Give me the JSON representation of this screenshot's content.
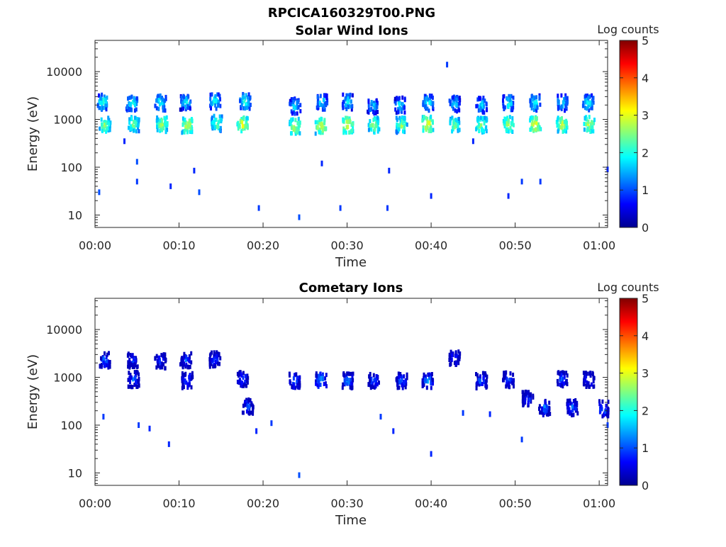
{
  "figure": {
    "title": "RPCICA160329T00.PNG"
  },
  "chart_data": [
    {
      "type": "heatmap",
      "title": "Solar Wind Ions",
      "xlabel": "Time",
      "ylabel": "Energy (eV)",
      "x_scale": "time",
      "y_scale": "log",
      "xlim": [
        "00:00",
        "01:01"
      ],
      "ylim": [
        5.5,
        45000
      ],
      "x_ticks": [
        "00:00",
        "00:10",
        "00:20",
        "00:30",
        "00:40",
        "00:50",
        "01:00"
      ],
      "y_ticks": [
        "10",
        "100",
        "1000",
        "10000"
      ],
      "colorbar": {
        "label": "Log counts",
        "range": [
          0,
          5
        ],
        "ticks": [
          "0",
          "1",
          "2",
          "3",
          "4",
          "5"
        ],
        "colormap": "jet"
      },
      "clusters": [
        {
          "t": 1.2,
          "e": 750,
          "v": 2.7
        },
        {
          "t": 1.0,
          "e": 2300,
          "v": 2.2
        },
        {
          "t": 4.6,
          "e": 800,
          "v": 2.6
        },
        {
          "t": 4.4,
          "e": 2200,
          "v": 2.2
        },
        {
          "t": 8.0,
          "e": 780,
          "v": 2.9
        },
        {
          "t": 7.8,
          "e": 2200,
          "v": 2.1
        },
        {
          "t": 11.0,
          "e": 760,
          "v": 3.0
        },
        {
          "t": 10.8,
          "e": 2300,
          "v": 2.0
        },
        {
          "t": 14.5,
          "e": 820,
          "v": 2.6
        },
        {
          "t": 14.3,
          "e": 2400,
          "v": 2.1
        },
        {
          "t": 17.6,
          "e": 780,
          "v": 3.1
        },
        {
          "t": 17.9,
          "e": 2400,
          "v": 2.2
        },
        {
          "t": 23.8,
          "e": 720,
          "v": 3.0
        },
        {
          "t": 23.8,
          "e": 1900,
          "v": 1.9
        },
        {
          "t": 26.9,
          "e": 720,
          "v": 3.1
        },
        {
          "t": 27.0,
          "e": 2300,
          "v": 2.0
        },
        {
          "t": 30.1,
          "e": 760,
          "v": 3.2
        },
        {
          "t": 30.1,
          "e": 2300,
          "v": 2.0
        },
        {
          "t": 33.2,
          "e": 760,
          "v": 2.8
        },
        {
          "t": 33.1,
          "e": 1900,
          "v": 1.8
        },
        {
          "t": 36.5,
          "e": 760,
          "v": 2.7
        },
        {
          "t": 36.3,
          "e": 2000,
          "v": 1.9
        },
        {
          "t": 39.6,
          "e": 800,
          "v": 3.2
        },
        {
          "t": 39.6,
          "e": 2200,
          "v": 2.0
        },
        {
          "t": 42.8,
          "e": 760,
          "v": 2.7
        },
        {
          "t": 42.8,
          "e": 2100,
          "v": 1.9
        },
        {
          "t": 46.0,
          "e": 760,
          "v": 2.8
        },
        {
          "t": 46.0,
          "e": 2000,
          "v": 1.9
        },
        {
          "t": 49.2,
          "e": 780,
          "v": 2.9
        },
        {
          "t": 49.2,
          "e": 2200,
          "v": 2.1
        },
        {
          "t": 52.4,
          "e": 780,
          "v": 3.2
        },
        {
          "t": 52.4,
          "e": 2200,
          "v": 2.1
        },
        {
          "t": 55.6,
          "e": 780,
          "v": 3.0
        },
        {
          "t": 55.6,
          "e": 2200,
          "v": 2.0
        },
        {
          "t": 58.8,
          "e": 780,
          "v": 2.9
        },
        {
          "t": 58.7,
          "e": 2200,
          "v": 2.1
        }
      ],
      "scatter": [
        {
          "t": 3.5,
          "e": 350,
          "v": 0.8
        },
        {
          "t": 5.0,
          "e": 130,
          "v": 1.0
        },
        {
          "t": 5.0,
          "e": 50,
          "v": 0.9
        },
        {
          "t": 9.0,
          "e": 40,
          "v": 0.8
        },
        {
          "t": 11.8,
          "e": 85,
          "v": 0.8
        },
        {
          "t": 12.4,
          "e": 30,
          "v": 1.0
        },
        {
          "t": 19.5,
          "e": 14,
          "v": 0.9
        },
        {
          "t": 24.3,
          "e": 9,
          "v": 1.0
        },
        {
          "t": 29.2,
          "e": 14,
          "v": 0.9
        },
        {
          "t": 34.8,
          "e": 14,
          "v": 0.9
        },
        {
          "t": 35.0,
          "e": 85,
          "v": 0.8
        },
        {
          "t": 40.0,
          "e": 25,
          "v": 0.8
        },
        {
          "t": 41.9,
          "e": 14000,
          "v": 0.9
        },
        {
          "t": 49.2,
          "e": 25,
          "v": 0.8
        },
        {
          "t": 50.8,
          "e": 50,
          "v": 0.9
        },
        {
          "t": 53.0,
          "e": 50,
          "v": 0.9
        },
        {
          "t": 61.0,
          "e": 90,
          "v": 0.8
        },
        {
          "t": 0.5,
          "e": 30,
          "v": 1.0
        },
        {
          "t": 27.0,
          "e": 120,
          "v": 0.8
        },
        {
          "t": 45.0,
          "e": 350,
          "v": 0.8
        }
      ]
    },
    {
      "type": "heatmap",
      "title": "Cometary Ions",
      "xlabel": "Time",
      "ylabel": "Energy (eV)",
      "x_scale": "time",
      "y_scale": "log",
      "xlim": [
        "00:00",
        "01:01"
      ],
      "ylim": [
        5.5,
        45000
      ],
      "x_ticks": [
        "00:00",
        "00:10",
        "00:20",
        "00:30",
        "00:40",
        "00:50",
        "01:00"
      ],
      "y_ticks": [
        "10",
        "100",
        "1000",
        "10000"
      ],
      "colorbar": {
        "label": "Log counts",
        "range": [
          0,
          5
        ],
        "ticks": [
          "0",
          "1",
          "2",
          "3",
          "4",
          "5"
        ],
        "colormap": "jet"
      },
      "clusters": [
        {
          "t": 1.2,
          "e": 2300,
          "v": 1.3
        },
        {
          "t": 4.5,
          "e": 2200,
          "v": 1.1
        },
        {
          "t": 4.6,
          "e": 900,
          "v": 1.2
        },
        {
          "t": 7.8,
          "e": 2200,
          "v": 1.1
        },
        {
          "t": 10.8,
          "e": 2300,
          "v": 1.1
        },
        {
          "t": 11.0,
          "e": 850,
          "v": 1.3
        },
        {
          "t": 14.3,
          "e": 2400,
          "v": 1.2
        },
        {
          "t": 17.6,
          "e": 900,
          "v": 1.3
        },
        {
          "t": 18.2,
          "e": 250,
          "v": 1.2
        },
        {
          "t": 23.8,
          "e": 850,
          "v": 1.4
        },
        {
          "t": 26.9,
          "e": 850,
          "v": 1.6
        },
        {
          "t": 30.1,
          "e": 850,
          "v": 1.4
        },
        {
          "t": 33.2,
          "e": 850,
          "v": 1.2
        },
        {
          "t": 36.5,
          "e": 850,
          "v": 1.3
        },
        {
          "t": 39.6,
          "e": 850,
          "v": 1.5
        },
        {
          "t": 42.8,
          "e": 2500,
          "v": 1.1
        },
        {
          "t": 46.0,
          "e": 850,
          "v": 1.3
        },
        {
          "t": 49.2,
          "e": 900,
          "v": 1.2
        },
        {
          "t": 51.5,
          "e": 350,
          "v": 1.1
        },
        {
          "t": 53.5,
          "e": 230,
          "v": 1.3
        },
        {
          "t": 55.6,
          "e": 900,
          "v": 1.2
        },
        {
          "t": 56.8,
          "e": 230,
          "v": 1.3
        },
        {
          "t": 58.8,
          "e": 900,
          "v": 1.2
        },
        {
          "t": 60.5,
          "e": 220,
          "v": 1.4
        }
      ],
      "scatter": [
        {
          "t": 1.0,
          "e": 150,
          "v": 0.9
        },
        {
          "t": 5.2,
          "e": 100,
          "v": 0.9
        },
        {
          "t": 6.5,
          "e": 85,
          "v": 0.8
        },
        {
          "t": 8.8,
          "e": 40,
          "v": 0.8
        },
        {
          "t": 19.2,
          "e": 75,
          "v": 0.8
        },
        {
          "t": 21.0,
          "e": 110,
          "v": 0.9
        },
        {
          "t": 24.3,
          "e": 9,
          "v": 1.0
        },
        {
          "t": 34.0,
          "e": 150,
          "v": 0.9
        },
        {
          "t": 35.5,
          "e": 75,
          "v": 0.8
        },
        {
          "t": 40.0,
          "e": 25,
          "v": 0.8
        },
        {
          "t": 43.8,
          "e": 180,
          "v": 0.9
        },
        {
          "t": 47.0,
          "e": 170,
          "v": 0.8
        },
        {
          "t": 50.8,
          "e": 50,
          "v": 0.9
        },
        {
          "t": 61.0,
          "e": 100,
          "v": 0.9
        }
      ]
    }
  ]
}
